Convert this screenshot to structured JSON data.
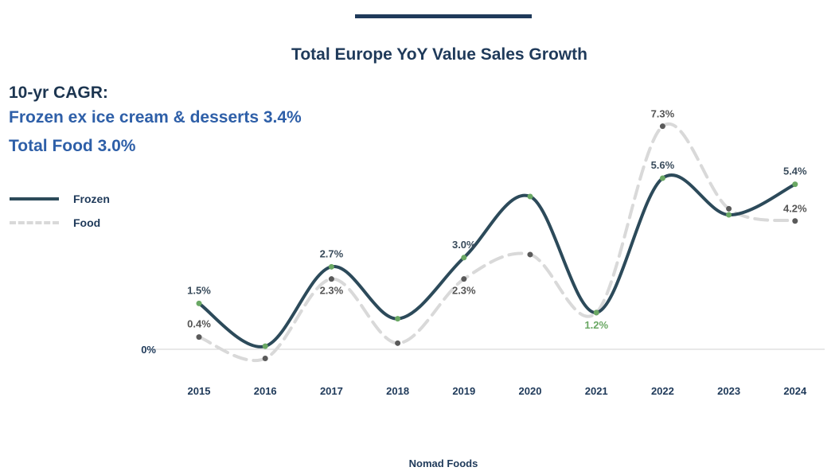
{
  "title": "Total Europe YoY Value Sales Growth",
  "cagr": {
    "heading": "10-yr CAGR:",
    "line1": "Frozen ex ice cream & desserts 3.4%",
    "line2": "Total Food 3.0%"
  },
  "footer": "Nomad Foods",
  "colors": {
    "frozen": "#2c4a5a",
    "food": "#d9d9d9",
    "frozen_marker": "#6aa864",
    "food_marker": "#5a5a5a",
    "navy": "#1f3a5a"
  },
  "chart_data": {
    "type": "line",
    "title": "Total Europe YoY Value Sales Growth",
    "categories": [
      "2015",
      "2016",
      "2017",
      "2018",
      "2019",
      "2020",
      "2021",
      "2022",
      "2023",
      "2024"
    ],
    "zero_label": "0%",
    "ylim": [
      -1,
      8.5
    ],
    "legend": "left",
    "series": [
      {
        "name": "Frozen",
        "values": [
          1.5,
          0.1,
          2.7,
          1.0,
          3.0,
          5.0,
          1.2,
          5.6,
          4.4,
          5.4
        ],
        "labels": [
          "1.5%",
          "",
          "2.7%",
          "",
          "3.0%",
          "",
          "1.2%",
          "5.6%",
          "",
          "5.4%"
        ]
      },
      {
        "name": "Food",
        "values": [
          0.4,
          -0.3,
          2.3,
          0.2,
          2.3,
          3.1,
          1.2,
          7.3,
          4.6,
          4.2
        ],
        "labels": [
          "0.4%",
          "",
          "2.3%",
          "",
          "2.3%",
          "",
          "",
          "7.3%",
          "",
          "4.2%"
        ]
      }
    ]
  }
}
